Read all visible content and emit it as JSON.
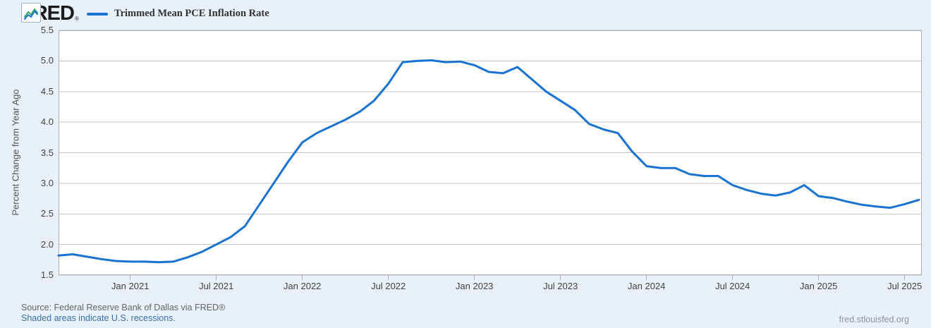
{
  "header": {
    "logo_text": "FRED",
    "logo_mark": "®",
    "legend_label": "Trimmed Mean PCE Inflation Rate"
  },
  "colors": {
    "background": "#e8f1f9",
    "line": "#1a73d1",
    "icon_line_green": "#36a867",
    "grid": "#c4c4c4",
    "plot_border": "#b0b0b0",
    "axis_text": "#424242",
    "link": "#3b70af",
    "muted_text": "#666666",
    "watermark_text": "#8f959b"
  },
  "y_axis": {
    "title": "Percent Change from Year Ago",
    "tick_labels": [
      "5.5",
      "5.0",
      "4.5",
      "4.0",
      "3.5",
      "3.0",
      "2.5",
      "2.0",
      "1.5"
    ],
    "min": 1.5,
    "max": 5.5,
    "step": 0.5
  },
  "x_axis": {
    "tick_labels": [
      "Jan 2021",
      "Jul 2021",
      "Jan 2022",
      "Jul 2022",
      "Jan 2023",
      "Jul 2023",
      "Jan 2024",
      "Jul 2024",
      "Jan 2025",
      "Jul 2025"
    ]
  },
  "chart_data": {
    "type": "line",
    "title": "Trimmed Mean PCE Inflation Rate",
    "xlabel": "",
    "ylabel": "Percent Change from Year Ago",
    "ylim": [
      1.5,
      5.5
    ],
    "ytick_step": 0.5,
    "grid": "horizontal",
    "legend_position": "top-left",
    "frequency": "monthly",
    "series": [
      {
        "name": "Trimmed Mean PCE Inflation Rate",
        "color": "#1a73d1",
        "x": [
          "2020-08",
          "2020-09",
          "2020-10",
          "2020-11",
          "2020-12",
          "2021-01",
          "2021-02",
          "2021-03",
          "2021-04",
          "2021-05",
          "2021-06",
          "2021-07",
          "2021-08",
          "2021-09",
          "2021-10",
          "2021-11",
          "2021-12",
          "2022-01",
          "2022-02",
          "2022-03",
          "2022-04",
          "2022-05",
          "2022-06",
          "2022-07",
          "2022-08",
          "2022-09",
          "2022-10",
          "2022-11",
          "2022-12",
          "2023-01",
          "2023-02",
          "2023-03",
          "2023-04",
          "2023-05",
          "2023-06",
          "2023-07",
          "2023-08",
          "2023-09",
          "2023-10",
          "2023-11",
          "2023-12",
          "2024-01",
          "2024-02",
          "2024-03",
          "2024-04",
          "2024-05",
          "2024-06",
          "2024-07",
          "2024-08",
          "2024-09",
          "2024-10",
          "2024-11",
          "2024-12",
          "2025-01",
          "2025-02",
          "2025-03",
          "2025-04",
          "2025-05",
          "2025-06",
          "2025-07",
          "2025-08"
        ],
        "values": [
          1.82,
          1.84,
          1.8,
          1.76,
          1.73,
          1.72,
          1.72,
          1.71,
          1.72,
          1.79,
          1.88,
          2.0,
          2.12,
          2.3,
          2.65,
          3.0,
          3.35,
          3.67,
          3.82,
          3.93,
          4.04,
          4.17,
          4.35,
          4.63,
          4.98,
          5.0,
          5.01,
          4.98,
          4.99,
          4.93,
          4.82,
          4.8,
          4.9,
          4.7,
          4.5,
          4.35,
          4.2,
          3.97,
          3.88,
          3.82,
          3.52,
          3.28,
          3.25,
          3.25,
          3.15,
          3.12,
          3.12,
          2.97,
          2.89,
          2.83,
          2.8,
          2.85,
          2.97,
          2.79,
          2.76,
          2.7,
          2.65,
          2.62,
          2.6,
          2.66,
          2.73
        ]
      }
    ]
  },
  "footer": {
    "source": "Source: Federal Reserve Bank of Dallas via FRED®",
    "recession_note": "Shaded areas indicate U.S. recessions.",
    "watermark": "fred.stlouisfed.org"
  }
}
